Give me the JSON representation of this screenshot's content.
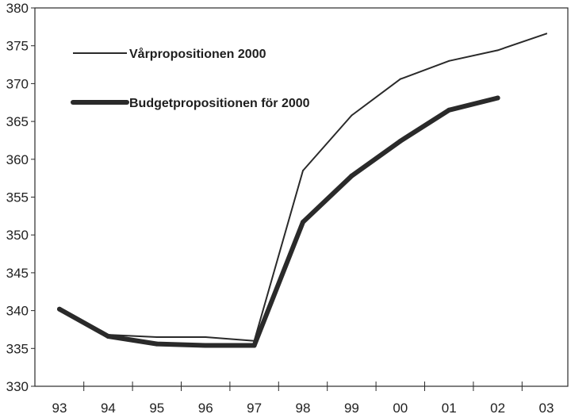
{
  "chart_data": {
    "type": "line",
    "title": "",
    "xlabel": "",
    "ylabel": "",
    "categories": [
      "93",
      "94",
      "95",
      "96",
      "97",
      "98",
      "99",
      "00",
      "01",
      "02",
      "03"
    ],
    "ylim": [
      330,
      380
    ],
    "yticks": [
      330,
      335,
      340,
      345,
      350,
      355,
      360,
      365,
      370,
      375,
      380
    ],
    "grid": false,
    "legend": "top-left",
    "series": [
      {
        "name": "Vårpropositionen 2000",
        "style": "thin",
        "color": "#2a2a2a",
        "values": [
          340.2,
          336.8,
          336.5,
          336.5,
          336.0,
          358.5,
          365.8,
          370.6,
          373.0,
          374.4,
          376.6
        ]
      },
      {
        "name": "Budgetpropositionen för 2000",
        "style": "thick",
        "color": "#2a2a2a",
        "values": [
          340.2,
          336.6,
          335.6,
          335.4,
          335.4,
          351.7,
          357.8,
          362.4,
          366.5,
          368.1,
          null
        ]
      }
    ]
  }
}
